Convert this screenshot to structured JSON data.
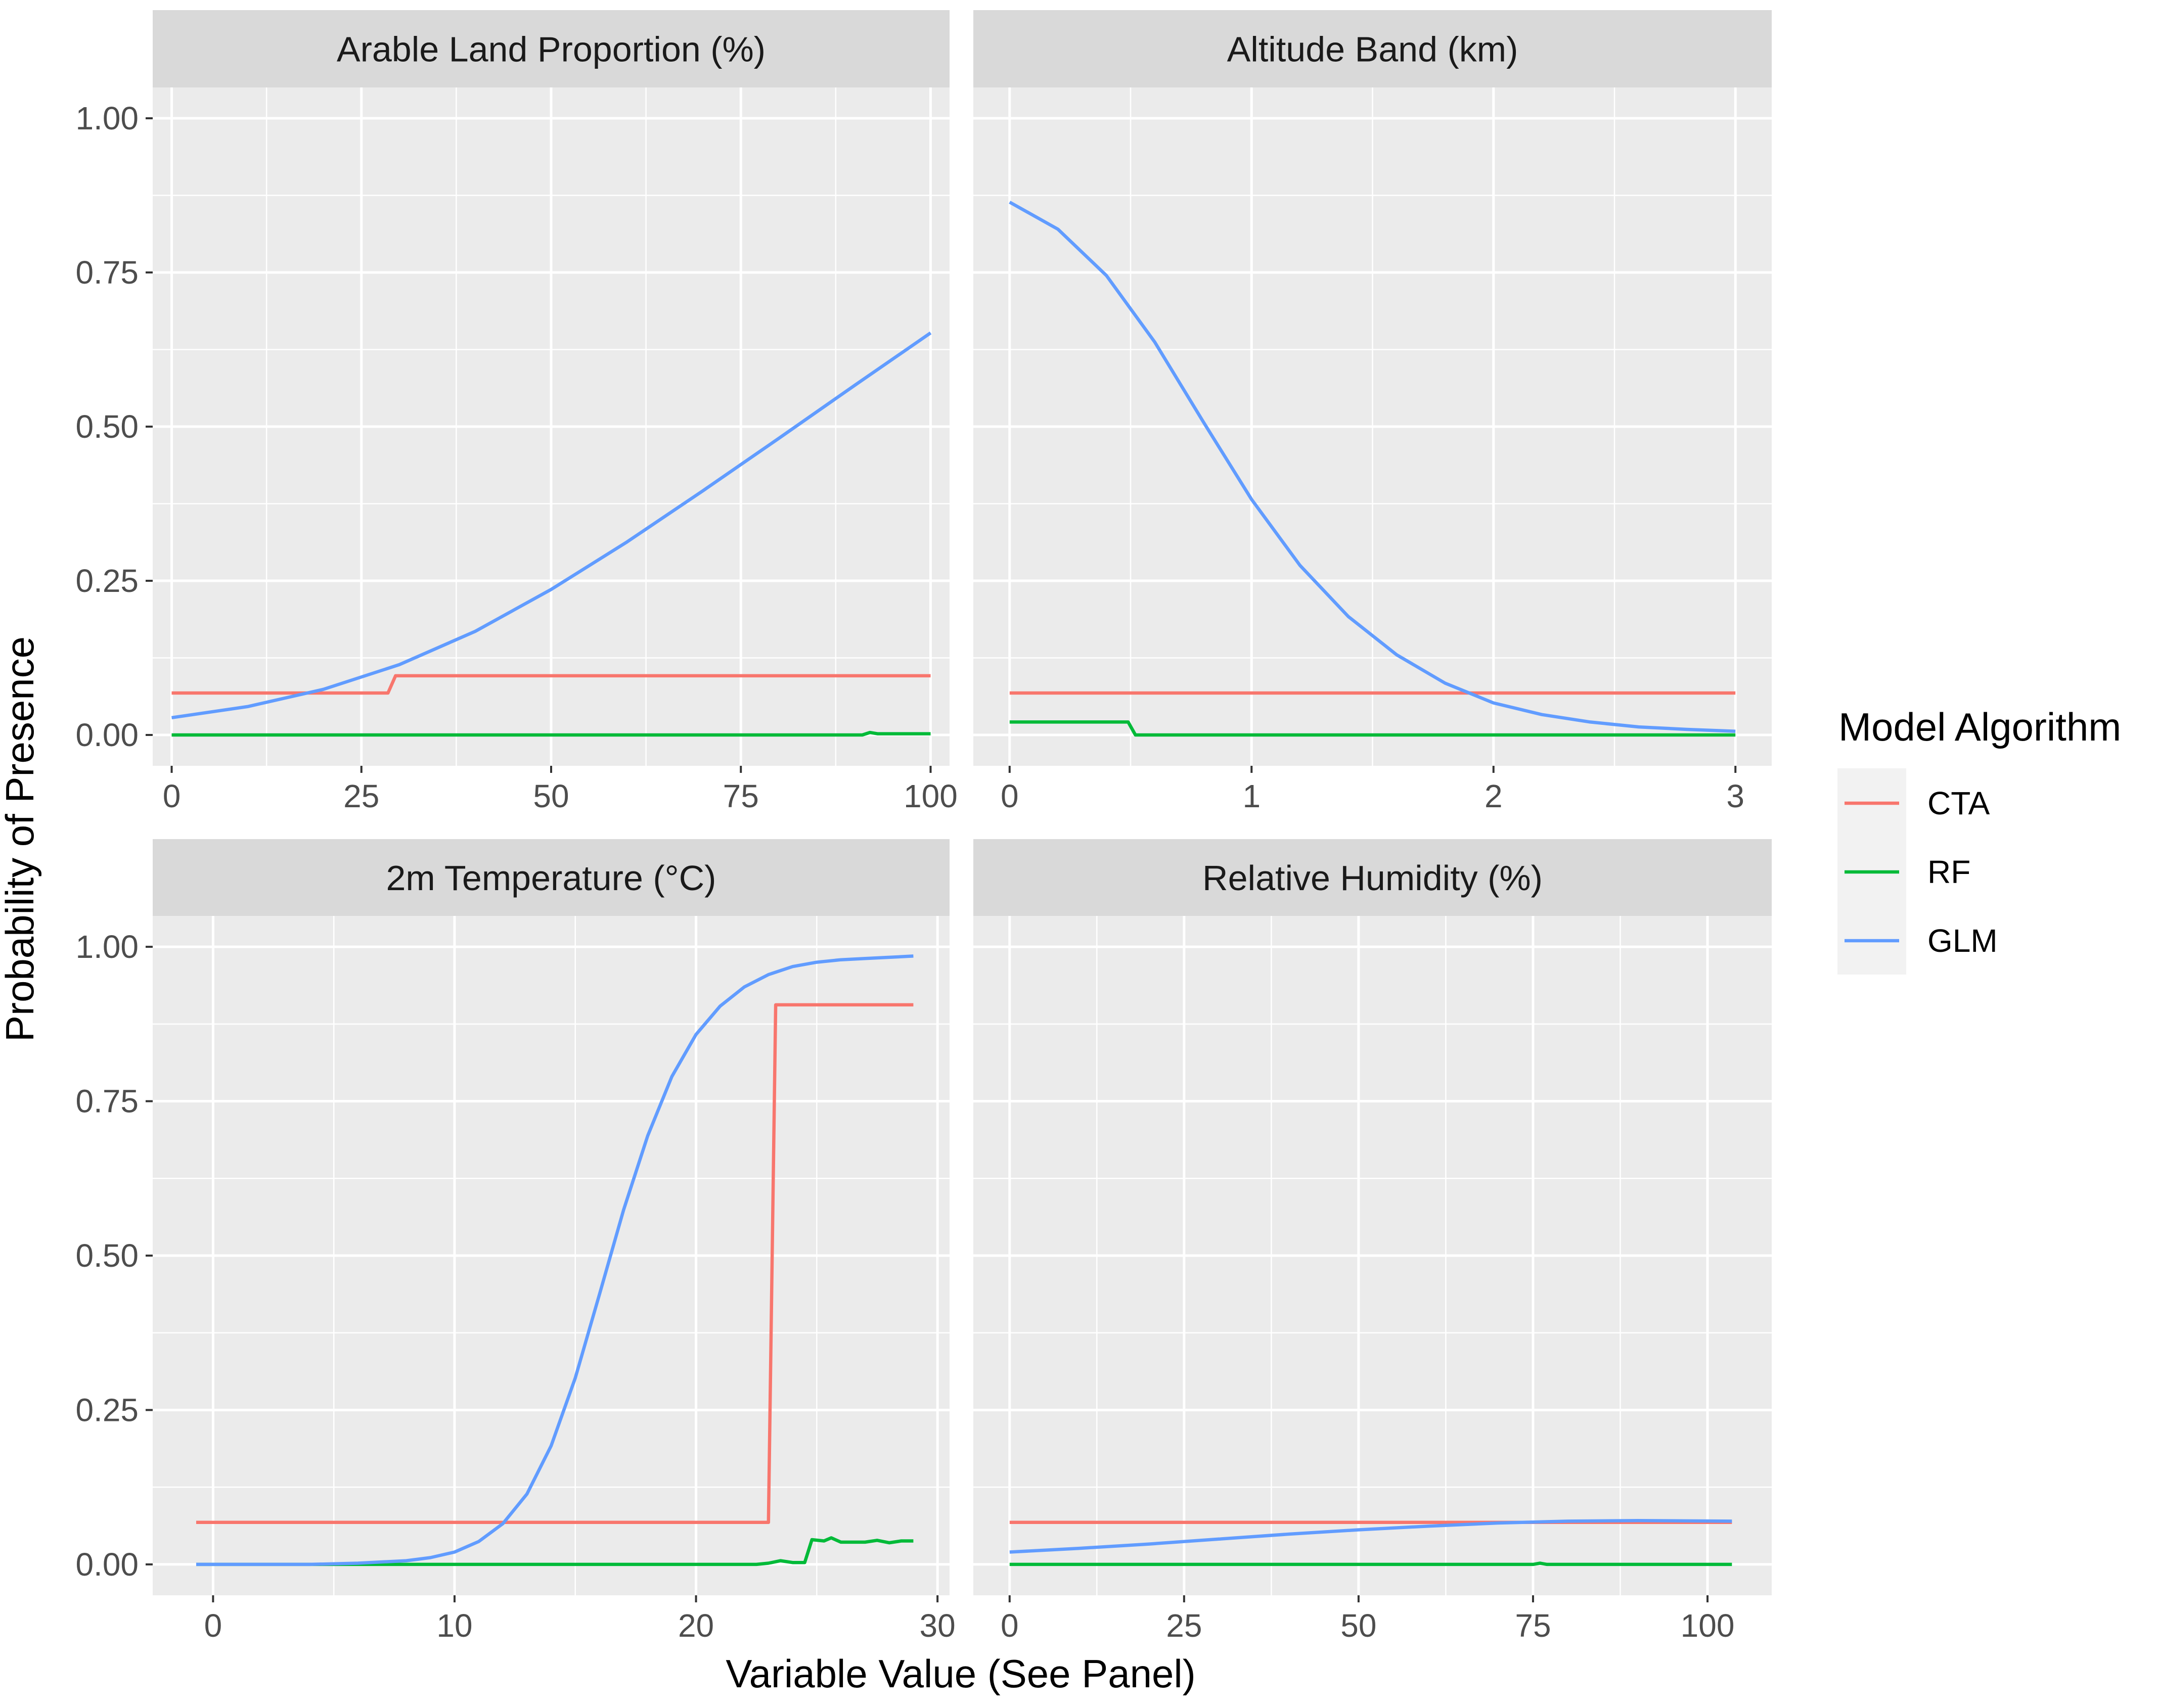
{
  "figure": {
    "ylabel": "Probability of Presence",
    "xlabel": "Variable Value (See Panel)",
    "legend_title": "Model Algorithm",
    "legend_position": "right"
  },
  "colors": {
    "panel_bg": "#EBEBEB",
    "strip_bg": "#D9D9D9",
    "grid": "#FFFFFF",
    "tick_text": "#4D4D4D",
    "axis_tick": "#333333",
    "CTA": "#F8766D",
    "RF": "#00BA38",
    "GLM": "#619CFF"
  },
  "legend": [
    {
      "key": "CTA",
      "label": "CTA"
    },
    {
      "key": "RF",
      "label": "RF"
    },
    {
      "key": "GLM",
      "label": "GLM"
    }
  ],
  "chart_data": [
    {
      "type": "line",
      "title": "Arable Land Proportion (%)",
      "xlim": [
        -2.5,
        102.5
      ],
      "ylim": [
        -0.05,
        1.05
      ],
      "xticks": [
        0,
        25,
        50,
        75,
        100
      ],
      "xtick_labels": [
        "0",
        "25",
        "50",
        "75",
        "100"
      ],
      "yticks": [
        0,
        0.25,
        0.5,
        0.75,
        1
      ],
      "ytick_labels": [
        "0.00",
        "0.25",
        "0.50",
        "0.75",
        "1.00"
      ],
      "series": [
        {
          "name": "CTA",
          "x": [
            0,
            28.5,
            29.5,
            100
          ],
          "y": [
            0.068,
            0.068,
            0.096,
            0.096
          ]
        },
        {
          "name": "RF",
          "x": [
            0,
            91,
            92,
            93,
            100
          ],
          "y": [
            0.0,
            0.0,
            0.004,
            0.002,
            0.002
          ]
        },
        {
          "name": "GLM",
          "x": [
            0,
            10,
            20,
            30,
            40,
            50,
            60,
            70,
            80,
            90,
            100
          ],
          "y": [
            0.028,
            0.046,
            0.074,
            0.114,
            0.168,
            0.236,
            0.313,
            0.396,
            0.481,
            0.567,
            0.652
          ]
        }
      ]
    },
    {
      "type": "line",
      "title": "Altitude Band (km)",
      "xlim": [
        -0.15,
        3.15
      ],
      "ylim": [
        -0.05,
        1.05
      ],
      "xticks": [
        0,
        1,
        2,
        3
      ],
      "xtick_labels": [
        "0",
        "1",
        "2",
        "3"
      ],
      "yticks": [
        0,
        0.25,
        0.5,
        0.75,
        1
      ],
      "ytick_labels": [
        "0.00",
        "0.25",
        "0.50",
        "0.75",
        "1.00"
      ],
      "series": [
        {
          "name": "CTA",
          "x": [
            0,
            3
          ],
          "y": [
            0.068,
            0.068
          ]
        },
        {
          "name": "RF",
          "x": [
            0,
            0.49,
            0.52,
            3
          ],
          "y": [
            0.021,
            0.021,
            0.0,
            0.0
          ]
        },
        {
          "name": "GLM",
          "x": [
            0,
            0.2,
            0.4,
            0.6,
            0.8,
            1.0,
            1.2,
            1.4,
            1.6,
            1.8,
            2.0,
            2.2,
            2.4,
            2.6,
            2.8,
            3.0
          ],
          "y": [
            0.864,
            0.82,
            0.745,
            0.637,
            0.508,
            0.382,
            0.275,
            0.192,
            0.13,
            0.084,
            0.052,
            0.033,
            0.021,
            0.013,
            0.009,
            0.006
          ]
        }
      ]
    },
    {
      "type": "line",
      "title": "2m Temperature (°C)",
      "xlim": [
        -2.5,
        30.5
      ],
      "ylim": [
        -0.05,
        1.05
      ],
      "xticks": [
        0,
        10,
        20,
        30
      ],
      "xtick_labels": [
        "0",
        "10",
        "20",
        "30"
      ],
      "yticks": [
        0,
        0.25,
        0.5,
        0.75,
        1
      ],
      "ytick_labels": [
        "0.00",
        "0.25",
        "0.50",
        "0.75",
        "1.00"
      ],
      "series": [
        {
          "name": "CTA",
          "x": [
            -0.7,
            23.0,
            23.3,
            29.0
          ],
          "y": [
            0.068,
            0.068,
            0.906,
            0.906
          ]
        },
        {
          "name": "RF",
          "x": [
            -0.7,
            22.5,
            23.0,
            23.5,
            24.0,
            24.5,
            24.8,
            25.3,
            25.6,
            26.0,
            26.5,
            27.0,
            27.5,
            28.0,
            28.5,
            29.0
          ],
          "y": [
            0.0,
            0.0,
            0.002,
            0.006,
            0.003,
            0.003,
            0.04,
            0.038,
            0.043,
            0.036,
            0.036,
            0.036,
            0.039,
            0.035,
            0.038,
            0.038
          ]
        },
        {
          "name": "GLM",
          "x": [
            -0.7,
            2,
            4,
            6,
            8,
            9,
            10,
            11,
            12,
            13,
            14,
            15,
            16,
            17,
            18,
            19,
            20,
            21,
            22,
            23,
            24,
            25,
            26,
            27,
            28,
            29
          ],
          "y": [
            0.0,
            0.0,
            0.0,
            0.002,
            0.006,
            0.011,
            0.02,
            0.037,
            0.066,
            0.114,
            0.192,
            0.302,
            0.437,
            0.574,
            0.694,
            0.79,
            0.858,
            0.904,
            0.935,
            0.955,
            0.968,
            0.975,
            0.979,
            0.981,
            0.983,
            0.985
          ]
        }
      ]
    },
    {
      "type": "line",
      "title": "Relative Humidity (%)",
      "xlim": [
        -5.2,
        109.2
      ],
      "ylim": [
        -0.05,
        1.05
      ],
      "xticks": [
        0,
        25,
        50,
        75,
        100
      ],
      "xtick_labels": [
        "0",
        "25",
        "50",
        "75",
        "100"
      ],
      "yticks": [
        0,
        0.25,
        0.5,
        0.75,
        1
      ],
      "ytick_labels": [
        "0.00",
        "0.25",
        "0.50",
        "0.75",
        "1.00"
      ],
      "series": [
        {
          "name": "CTA",
          "x": [
            0,
            103.5
          ],
          "y": [
            0.068,
            0.068
          ]
        },
        {
          "name": "RF",
          "x": [
            0,
            75,
            76,
            77,
            103.5
          ],
          "y": [
            0.0,
            0.0,
            0.002,
            0.0,
            0.0
          ]
        },
        {
          "name": "GLM",
          "x": [
            0,
            10,
            20,
            30,
            40,
            50,
            60,
            70,
            80,
            90,
            103.5
          ],
          "y": [
            0.02,
            0.026,
            0.033,
            0.041,
            0.049,
            0.056,
            0.062,
            0.067,
            0.07,
            0.071,
            0.07
          ]
        }
      ]
    }
  ]
}
